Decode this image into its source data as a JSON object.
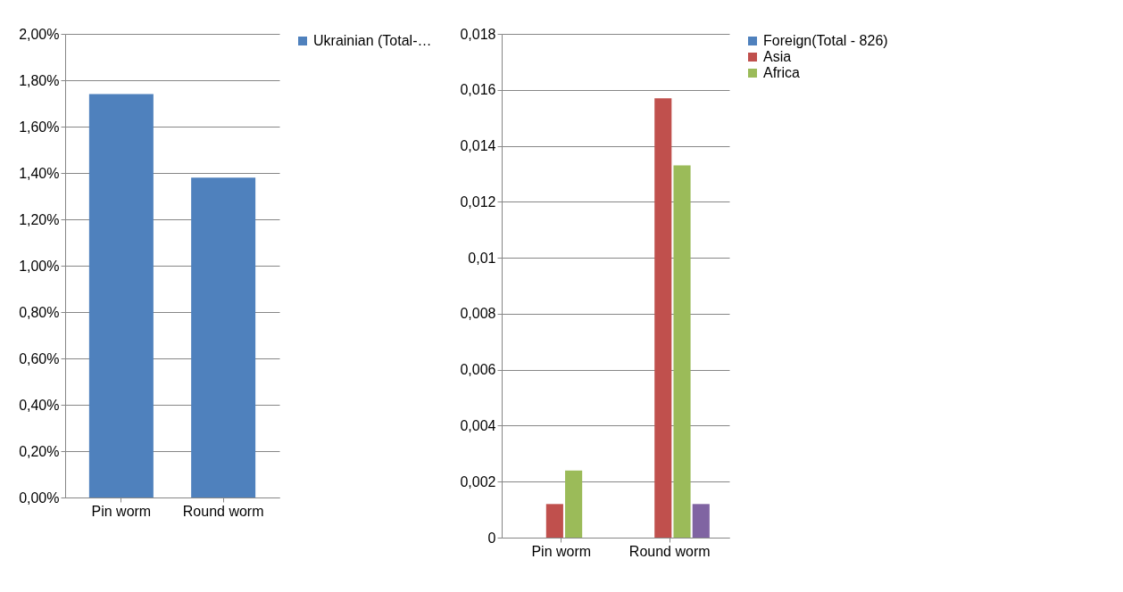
{
  "chart_data": [
    {
      "type": "bar",
      "categories": [
        "Pin worm",
        "Round worm"
      ],
      "series": [
        {
          "name": "Ukrainian (Total-…",
          "color": "#4f81bd",
          "values": [
            1.74,
            1.38
          ]
        }
      ],
      "ylim": [
        0,
        2
      ],
      "yticks": [
        {
          "value": 0,
          "label": "0,00%"
        },
        {
          "value": 0.2,
          "label": "0,20%"
        },
        {
          "value": 0.4,
          "label": "0,40%"
        },
        {
          "value": 0.6,
          "label": "0,60%"
        },
        {
          "value": 0.8,
          "label": "0,80%"
        },
        {
          "value": 1,
          "label": "1,00%"
        },
        {
          "value": 1.2,
          "label": "1,20%"
        },
        {
          "value": 1.4,
          "label": "1,40%"
        },
        {
          "value": 1.6,
          "label": "1,60%"
        },
        {
          "value": 1.8,
          "label": "1,80%"
        },
        {
          "value": 2,
          "label": "2,00%"
        }
      ],
      "grid": "y",
      "legend": "right"
    },
    {
      "type": "bar",
      "categories": [
        "Pin worm",
        "Round worm"
      ],
      "series": [
        {
          "name": "Foreign(Total - 826)",
          "color": "#4f81bd",
          "values": [
            0,
            0
          ]
        },
        {
          "name": "Asia",
          "color": "#c0504d",
          "values": [
            0.0012,
            0.0157
          ]
        },
        {
          "name": "Africa",
          "color": "#9bbb59",
          "values": [
            0.0024,
            0.0133
          ]
        },
        {
          "color": "#8064a2",
          "values": [
            0,
            0.0012
          ]
        }
      ],
      "ylim": [
        0,
        0.018
      ],
      "yticks": [
        0,
        {
          "value": 0.002,
          "label": "0,002"
        },
        {
          "value": 0.004,
          "label": "0,004"
        },
        {
          "value": 0.006,
          "label": "0,006"
        },
        {
          "value": 0.008,
          "label": "0,008"
        },
        {
          "value": 0.01,
          "label": "0,01"
        },
        {
          "value": 0.012,
          "label": "0,012"
        },
        {
          "value": 0.014,
          "label": "0,014"
        },
        {
          "value": 0.016,
          "label": "0,016"
        },
        {
          "value": 0.018,
          "label": "0,018"
        }
      ],
      "grid": "y",
      "legend": "right"
    }
  ]
}
